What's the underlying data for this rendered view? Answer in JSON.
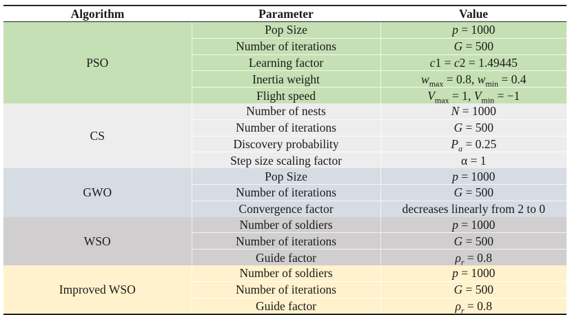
{
  "headers": [
    "Algorithm",
    "Parameter",
    "Value"
  ],
  "groups": [
    {
      "algorithm": "PSO",
      "rows": [
        {
          "param": "Pop Size",
          "value": "<i>p</i> = 1000"
        },
        {
          "param": "Number of iterations",
          "value": "<i>G</i> = 500"
        },
        {
          "param": "Learning factor",
          "value": "<i>c</i>1 = <i>c</i>2 = 1.49445"
        },
        {
          "param": "Inertia weight",
          "value": "<i>w</i><sub>max</sub> = 0.8, <i>w</i><sub>min</sub> = 0.4"
        },
        {
          "param": "Flight speed",
          "value": "<i>V</i><sub>max</sub> = 1, <i>V</i><sub>min</sub> = −1"
        }
      ]
    },
    {
      "algorithm": "CS",
      "rows": [
        {
          "param": "Number of nests",
          "value": "<i>N</i> = 1000"
        },
        {
          "param": "Number of iterations",
          "value": "<i>G</i> = 500"
        },
        {
          "param": "Discovery probability",
          "value": "<i>P<sub>a</sub></i> = 0.25"
        },
        {
          "param": "Step size scaling factor",
          "value": "α = 1"
        }
      ]
    },
    {
      "algorithm": "GWO",
      "rows": [
        {
          "param": "Pop Size",
          "value": "<i>p</i> = 1000"
        },
        {
          "param": "Number of iterations",
          "value": "<i>G</i> = 500"
        },
        {
          "param": "Convergence factor",
          "value": "decreases linearly from 2 to 0"
        }
      ]
    },
    {
      "algorithm": "WSO",
      "rows": [
        {
          "param": "Number of soldiers",
          "value": "<i>p</i> = 1000"
        },
        {
          "param": "Number of iterations",
          "value": "<i>G</i> = 500"
        },
        {
          "param": "Guide factor",
          "value": "<i>ρ<sub>r</sub></i> = 0.8"
        }
      ]
    },
    {
      "algorithm": "Improved WSO",
      "rows": [
        {
          "param": "Number of soldiers",
          "value": "<i>p</i> = 1000"
        },
        {
          "param": "Number of iterations",
          "value": "<i>G</i> = 500"
        },
        {
          "param": "Guide factor",
          "value": "<i>ρ<sub>r</sub></i> = 0.8"
        }
      ]
    }
  ]
}
